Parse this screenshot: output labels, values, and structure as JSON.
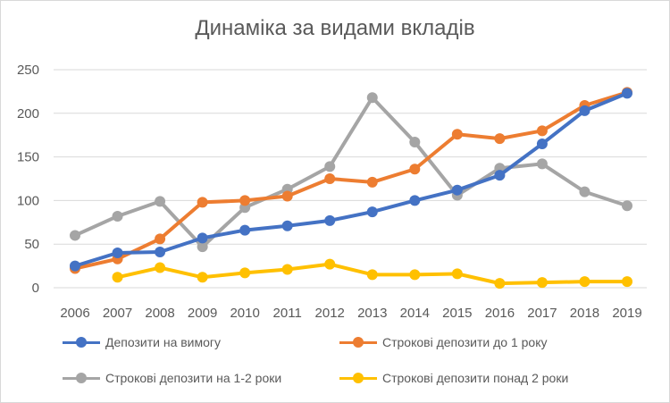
{
  "chart_data": {
    "type": "line",
    "title": "Динаміка за видами вкладів",
    "xlabel": "",
    "ylabel": "",
    "ylim": [
      0,
      250
    ],
    "yticks": [
      0,
      50,
      100,
      150,
      200,
      250
    ],
    "categories": [
      "2006",
      "2007",
      "2008",
      "2009",
      "2010",
      "2011",
      "2012",
      "2013",
      "2014",
      "2015",
      "2016",
      "2017",
      "2018",
      "2019"
    ],
    "grid": true,
    "legend_position": "bottom",
    "series": [
      {
        "name": "Депозити на вимогу",
        "color": "#4472c4",
        "values": [
          25,
          40,
          41,
          57,
          66,
          71,
          77,
          87,
          100,
          112,
          129,
          165,
          203,
          223
        ]
      },
      {
        "name": "Строкові депозити до 1 року",
        "color": "#ed7d31",
        "values": [
          22,
          33,
          56,
          98,
          100,
          105,
          125,
          121,
          136,
          176,
          171,
          180,
          209,
          224
        ]
      },
      {
        "name": "Строкові депозити на 1-2 роки",
        "color": "#a5a5a5",
        "values": [
          60,
          82,
          99,
          47,
          92,
          113,
          139,
          218,
          167,
          106,
          137,
          142,
          110,
          94
        ]
      },
      {
        "name": "Строкові депозити понад 2 роки",
        "color": "#ffc000",
        "values": [
          null,
          12,
          23,
          12,
          17,
          21,
          27,
          15,
          15,
          16,
          5,
          6,
          7,
          7
        ]
      }
    ]
  }
}
